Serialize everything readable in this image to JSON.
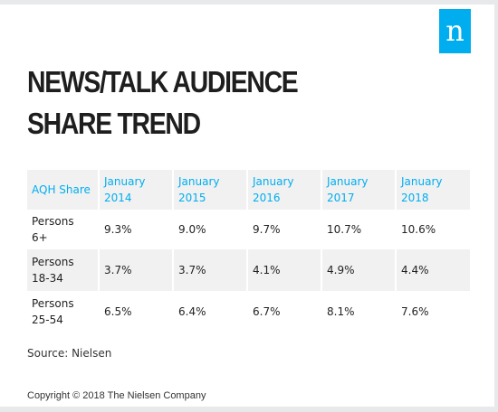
{
  "brand": {
    "logo_letter": "n",
    "logo_color": "#00aeef"
  },
  "title": "NEWS/TALK AUDIENCE SHARE TREND",
  "chart_data": {
    "type": "table",
    "columns": [
      "AQH Share",
      "January 2014",
      "January 2015",
      "January 2016",
      "January 2017",
      "January 2018"
    ],
    "rows": [
      {
        "label": "Persons 6+",
        "values": [
          "9.3%",
          "9.0%",
          "9.7%",
          "10.7%",
          "10.6%"
        ]
      },
      {
        "label": "Persons 18-34",
        "values": [
          "3.7%",
          "3.7%",
          "4.1%",
          "4.9%",
          "4.4%"
        ]
      },
      {
        "label": "Persons 25-54",
        "values": [
          "6.5%",
          "6.4%",
          "6.7%",
          "8.1%",
          "7.6%"
        ]
      }
    ]
  },
  "source": "Source: Nielsen",
  "copyright": "Copyright © 2018 The Nielsen Company",
  "colors": {
    "header_text": "#00aeef",
    "stripe": "#f1f1f1",
    "background": "#ffffff"
  }
}
